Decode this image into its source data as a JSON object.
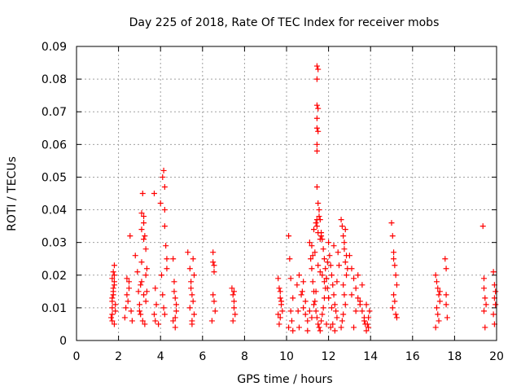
{
  "chart_data": {
    "type": "scatter",
    "title": "Day 225 of 2018, Rate Of TEC Index for receiver mobs",
    "xlabel": "GPS time / hours",
    "ylabel": "ROTI / TECUs",
    "xlim": [
      0,
      20
    ],
    "ylim": [
      0,
      0.09
    ],
    "xticks": [
      0,
      2,
      4,
      6,
      8,
      10,
      12,
      14,
      16,
      18,
      20
    ],
    "xtick_labels": [
      "0",
      "2",
      "4",
      "6",
      "8",
      "10",
      "12",
      "14",
      "16",
      "18",
      "20"
    ],
    "yticks": [
      0,
      0.01,
      0.02,
      0.03,
      0.04,
      0.05,
      0.06,
      0.07,
      0.08,
      0.09
    ],
    "ytick_labels": [
      "0",
      "0.01",
      "0.02",
      "0.03",
      "0.04",
      "0.05",
      "0.06",
      "0.07",
      "0.08",
      "0.09"
    ],
    "grid": true,
    "marker": "+",
    "series": [
      {
        "name": "ROTI",
        "color": "#ff0000",
        "x": [
          1.7,
          1.7,
          1.7,
          1.7,
          1.75,
          1.75,
          1.8,
          1.8,
          1.8,
          1.8,
          1.85,
          1.85,
          1.65,
          1.7,
          1.75,
          1.8,
          1.7,
          1.75,
          2.3,
          2.35,
          2.4,
          2.4,
          2.45,
          2.5,
          2.55,
          2.6,
          2.5,
          2.65,
          2.8,
          2.9,
          2.95,
          3.0,
          3.05,
          3.1,
          3.1,
          3.15,
          3.2,
          3.2,
          3.25,
          3.3,
          3.35,
          3.1,
          3.2,
          3.3,
          3.0,
          3.15,
          3.25,
          3.1,
          3.2,
          3.35,
          3.3,
          3.05,
          3.7,
          3.75,
          3.8,
          3.7,
          3.75,
          3.9,
          4.0,
          4.1,
          4.15,
          4.2,
          4.2,
          4.25,
          4.3,
          4.1,
          4.15,
          4.2,
          4.05,
          4.2,
          4.3,
          4.6,
          4.65,
          4.7,
          4.75,
          4.6,
          4.7,
          4.65,
          4.75,
          4.7,
          5.3,
          5.4,
          5.45,
          5.5,
          5.55,
          5.6,
          5.5,
          5.4,
          5.6,
          5.45,
          5.55,
          5.5,
          6.5,
          6.5,
          6.55,
          6.55,
          6.5,
          6.6,
          6.45,
          6.55,
          7.4,
          7.45,
          7.5,
          7.5,
          7.55,
          7.45,
          7.5,
          9.6,
          9.65,
          9.7,
          9.75,
          9.8,
          9.7,
          9.65,
          9.75,
          9.7,
          9.6,
          10.1,
          10.15,
          10.2,
          10.3,
          10.2,
          10.25,
          10.1,
          10.3,
          10.5,
          10.6,
          10.7,
          10.8,
          10.9,
          11.0,
          10.6,
          10.8,
          10.9,
          11.0,
          10.55,
          10.75,
          11.1,
          11.15,
          11.2,
          11.25,
          11.3,
          11.35,
          11.4,
          11.45,
          11.5,
          11.55,
          11.6,
          11.65,
          11.7,
          11.75,
          11.8,
          11.85,
          11.9,
          11.95,
          11.45,
          11.45,
          11.45,
          11.45,
          11.45,
          11.45,
          11.45,
          11.45,
          11.45,
          11.45,
          11.5,
          11.5,
          11.5,
          11.3,
          11.4,
          11.5,
          11.6,
          11.2,
          11.35,
          11.55,
          11.65,
          11.25,
          11.5,
          11.6,
          11.7,
          11.8,
          11.4,
          11.3,
          11.1,
          11.2,
          11.9,
          11.5,
          11.55,
          11.6,
          11.65,
          11.7,
          11.75,
          11.8,
          11.85,
          11.9,
          11.95,
          12.0,
          12.0,
          12.05,
          12.1,
          12.15,
          12.2,
          12.25,
          12.3,
          12.35,
          12.4,
          12.2,
          12.1,
          12.3,
          12.0,
          12.4,
          12.5,
          12.45,
          12.25,
          12.15,
          12.6,
          12.65,
          12.7,
          12.75,
          12.8,
          12.85,
          12.7,
          12.75,
          12.8,
          12.7,
          12.65,
          12.6,
          12.85,
          12.9,
          12.75,
          12.8,
          13.0,
          13.1,
          13.2,
          13.3,
          13.4,
          13.5,
          13.6,
          13.7,
          13.75,
          13.2,
          13.4,
          13.6,
          13.1,
          13.5,
          13.3,
          13.7,
          13.8,
          13.85,
          13.9,
          13.95,
          13.8,
          13.9,
          15.0,
          15.05,
          15.1,
          15.15,
          15.2,
          15.25,
          15.1,
          15.15,
          15.05,
          15.2,
          15.1,
          15.25,
          17.1,
          17.15,
          17.2,
          17.25,
          17.3,
          17.15,
          17.2,
          17.25,
          17.1,
          17.3,
          17.55,
          17.6,
          17.6,
          17.65,
          17.6,
          19.35,
          19.4,
          19.4,
          19.45,
          19.5,
          19.4,
          19.45,
          19.85,
          19.9,
          19.95,
          19.9,
          19.95,
          19.85,
          19.9
        ],
        "y": [
          0.006,
          0.008,
          0.01,
          0.012,
          0.014,
          0.016,
          0.018,
          0.02,
          0.023,
          0.005,
          0.009,
          0.011,
          0.007,
          0.013,
          0.015,
          0.017,
          0.019,
          0.021,
          0.007,
          0.01,
          0.014,
          0.019,
          0.012,
          0.016,
          0.032,
          0.009,
          0.018,
          0.006,
          0.026,
          0.021,
          0.015,
          0.011,
          0.008,
          0.034,
          0.039,
          0.045,
          0.038,
          0.036,
          0.032,
          0.028,
          0.022,
          0.018,
          0.014,
          0.012,
          0.009,
          0.006,
          0.005,
          0.024,
          0.031,
          0.015,
          0.02,
          0.017,
          0.045,
          0.016,
          0.011,
          0.008,
          0.006,
          0.005,
          0.042,
          0.05,
          0.052,
          0.047,
          0.04,
          0.029,
          0.025,
          0.014,
          0.01,
          0.008,
          0.02,
          0.035,
          0.022,
          0.025,
          0.018,
          0.013,
          0.009,
          0.006,
          0.004,
          0.015,
          0.011,
          0.007,
          0.027,
          0.022,
          0.018,
          0.014,
          0.012,
          0.008,
          0.006,
          0.01,
          0.02,
          0.016,
          0.025,
          0.005,
          0.027,
          0.024,
          0.023,
          0.021,
          0.014,
          0.009,
          0.006,
          0.012,
          0.016,
          0.014,
          0.012,
          0.01,
          0.008,
          0.006,
          0.015,
          0.019,
          0.016,
          0.013,
          0.011,
          0.009,
          0.007,
          0.005,
          0.012,
          0.015,
          0.008,
          0.032,
          0.025,
          0.019,
          0.013,
          0.009,
          0.006,
          0.004,
          0.003,
          0.017,
          0.02,
          0.014,
          0.01,
          0.008,
          0.006,
          0.004,
          0.018,
          0.012,
          0.003,
          0.009,
          0.015,
          0.03,
          0.025,
          0.022,
          0.018,
          0.015,
          0.012,
          0.009,
          0.007,
          0.005,
          0.004,
          0.003,
          0.006,
          0.008,
          0.01,
          0.013,
          0.016,
          0.019,
          0.024,
          0.084,
          0.08,
          0.072,
          0.068,
          0.065,
          0.06,
          0.058,
          0.047,
          0.037,
          0.035,
          0.083,
          0.064,
          0.071,
          0.034,
          0.036,
          0.033,
          0.031,
          0.029,
          0.027,
          0.038,
          0.032,
          0.026,
          0.023,
          0.021,
          0.02,
          0.018,
          0.015,
          0.011,
          0.009,
          0.007,
          0.005,
          0.042,
          0.04,
          0.037,
          0.033,
          0.031,
          0.028,
          0.025,
          0.022,
          0.019,
          0.016,
          0.013,
          0.03,
          0.026,
          0.023,
          0.02,
          0.017,
          0.014,
          0.011,
          0.009,
          0.007,
          0.005,
          0.004,
          0.003,
          0.013,
          0.018,
          0.023,
          0.027,
          0.029,
          0.01,
          0.037,
          0.035,
          0.032,
          0.028,
          0.024,
          0.02,
          0.017,
          0.014,
          0.011,
          0.008,
          0.006,
          0.004,
          0.026,
          0.022,
          0.03,
          0.034,
          0.026,
          0.022,
          0.019,
          0.016,
          0.013,
          0.011,
          0.009,
          0.007,
          0.005,
          0.004,
          0.02,
          0.017,
          0.014,
          0.012,
          0.009,
          0.006,
          0.003,
          0.005,
          0.007,
          0.009,
          0.011,
          0.004,
          0.036,
          0.032,
          0.027,
          0.023,
          0.02,
          0.017,
          0.014,
          0.012,
          0.01,
          0.008,
          0.025,
          0.007,
          0.02,
          0.018,
          0.016,
          0.014,
          0.012,
          0.01,
          0.008,
          0.006,
          0.004,
          0.015,
          0.025,
          0.022,
          0.011,
          0.007,
          0.014,
          0.035,
          0.019,
          0.016,
          0.013,
          0.011,
          0.009,
          0.004,
          0.021,
          0.017,
          0.015,
          0.013,
          0.011,
          0.008,
          0.005
        ]
      }
    ]
  }
}
